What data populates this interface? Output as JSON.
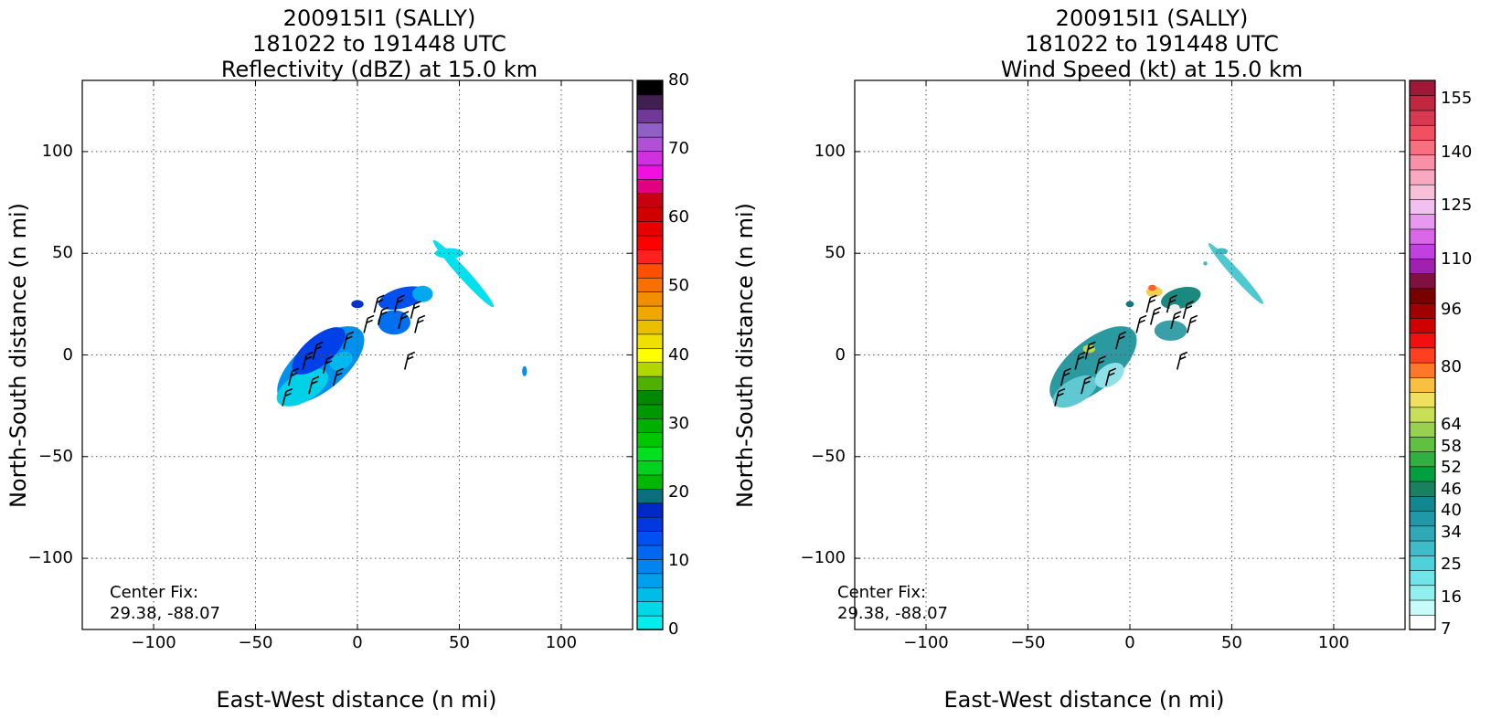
{
  "chart_data": [
    {
      "type": "heatmap",
      "title_lines": [
        "200915I1 (SALLY)",
        "181022 to 191448 UTC",
        "Reflectivity (dBZ) at 15.0 km"
      ],
      "xlabel": "East-West distance (n mi)",
      "ylabel": "North-South distance (n mi)",
      "xlim": [
        -135,
        135
      ],
      "ylim": [
        -135,
        135
      ],
      "xticks": [
        -100,
        -50,
        0,
        50,
        100
      ],
      "yticks": [
        -100,
        -50,
        0,
        50,
        100
      ],
      "x_tick_labels": [
        "−100",
        "−50",
        "0",
        "50",
        "100"
      ],
      "y_tick_labels": [
        "−100",
        "−50",
        "0",
        "50",
        "100"
      ],
      "grid": true,
      "annotation": [
        "Center Fix:",
        "29.38, -88.07"
      ],
      "colorbar": {
        "levels": 32,
        "range": [
          0,
          80
        ],
        "tick_values": [
          0,
          10,
          20,
          30,
          40,
          50,
          60,
          70,
          80
        ],
        "tick_labels": [
          "0",
          "10",
          "20",
          "30",
          "40",
          "50",
          "60",
          "70",
          "80"
        ],
        "colors": [
          "#00eeee",
          "#00d8e8",
          "#00bce8",
          "#00a0ee",
          "#0084ee",
          "#0068f0",
          "#0050f4",
          "#0038e0",
          "#0028c8",
          "#0a7080",
          "#00b800",
          "#00d020",
          "#00e020",
          "#00c800",
          "#00b000",
          "#009800",
          "#008800",
          "#50b000",
          "#b0d800",
          "#ffff00",
          "#f0e000",
          "#e8c000",
          "#f0a800",
          "#f09000",
          "#f87000",
          "#ff5000",
          "#ff2020",
          "#ff0000",
          "#e80000",
          "#d00000",
          "#c80010",
          "#e00080",
          "#f010e0",
          "#d030e0",
          "#b050d8",
          "#9060c8",
          "#703898",
          "#402050",
          "#000000"
        ]
      },
      "series": [
        {
          "name": "",
          "blobs": [
            {
              "x": -18,
              "y": -5,
              "rx": 26,
              "ry": 12,
              "angle": 40,
              "color": "#0090ee"
            },
            {
              "x": -27,
              "y": -16,
              "rx": 14,
              "ry": 7,
              "angle": 30,
              "color": "#00d0e8"
            },
            {
              "x": -19,
              "y": 2,
              "rx": 16,
              "ry": 7,
              "angle": 40,
              "color": "#0040e8"
            },
            {
              "x": -8,
              "y": -3,
              "rx": 6,
              "ry": 4,
              "angle": 30,
              "color": "#00b8ee"
            },
            {
              "x": 18,
              "y": 16,
              "rx": 8,
              "ry": 6,
              "angle": 0,
              "color": "#0070f0"
            },
            {
              "x": 22,
              "y": 28,
              "rx": 12,
              "ry": 5,
              "angle": 15,
              "color": "#0050f0"
            },
            {
              "x": 32,
              "y": 30,
              "rx": 5,
              "ry": 4,
              "angle": 0,
              "color": "#00a8ee"
            },
            {
              "x": 0,
              "y": 25,
              "rx": 3,
              "ry": 2,
              "angle": 0,
              "color": "#0030d0"
            },
            {
              "x": 52,
              "y": 40,
              "rx": 22,
              "ry": 2.5,
              "angle": -48,
              "color": "#00e0ee"
            },
            {
              "x": 45,
              "y": 50,
              "rx": 7,
              "ry": 2.5,
              "angle": 0,
              "color": "#00e0ee"
            },
            {
              "x": 82,
              "y": -8,
              "rx": 1.2,
              "ry": 2.5,
              "angle": 0,
              "color": "#0090ee"
            }
          ]
        }
      ]
    },
    {
      "type": "heatmap",
      "title_lines": [
        "200915I1 (SALLY)",
        "181022 to 191448 UTC",
        "Wind Speed (kt) at 15.0 km"
      ],
      "xlabel": "East-West distance (n mi)",
      "ylabel": "North-South distance (n mi)",
      "xlim": [
        -135,
        135
      ],
      "ylim": [
        -135,
        135
      ],
      "xticks": [
        -100,
        -50,
        0,
        50,
        100
      ],
      "yticks": [
        -100,
        -50,
        0,
        50,
        100
      ],
      "x_tick_labels": [
        "−100",
        "−50",
        "0",
        "50",
        "100"
      ],
      "y_tick_labels": [
        "−100",
        "−50",
        "0",
        "50",
        "100"
      ],
      "grid": true,
      "annotation": [
        "Center Fix:",
        "29.38, -88.07"
      ],
      "colorbar": {
        "levels": 33,
        "range": [
          7,
          160
        ],
        "tick_values": [
          7,
          16,
          25,
          34,
          40,
          46,
          52,
          58,
          64,
          80,
          96,
          110,
          125,
          140,
          155
        ],
        "tick_labels": [
          "7",
          "16",
          "25",
          "34",
          "40",
          "46",
          "52",
          "58",
          "64",
          "80",
          "96",
          "110",
          "125",
          "140",
          "155"
        ],
        "colors": [
          "#ffffff",
          "#c8fafa",
          "#90f0f0",
          "#70e4e8",
          "#50d0d8",
          "#40bcc8",
          "#30a8b8",
          "#2098a8",
          "#108890",
          "#1a8060",
          "#00a040",
          "#30b040",
          "#60c040",
          "#98d050",
          "#c8e058",
          "#f0e060",
          "#f8c040",
          "#ff7828",
          "#ff4020",
          "#f01010",
          "#d00000",
          "#a00000",
          "#780000",
          "#801040",
          "#a020b0",
          "#c040e0",
          "#d868e8",
          "#e898f0",
          "#f0c0f0",
          "#f8c0d8",
          "#f8a8c0",
          "#f890a8",
          "#f87080",
          "#f05060",
          "#d83850",
          "#c02840",
          "#a01838"
        ]
      },
      "series": [
        {
          "name": "",
          "blobs": [
            {
              "x": -18,
              "y": -5,
              "rx": 26,
              "ry": 12,
              "angle": 40,
              "color": "#2a9aa0"
            },
            {
              "x": -27,
              "y": -18,
              "rx": 12,
              "ry": 6,
              "angle": 30,
              "color": "#60c8d0"
            },
            {
              "x": -10,
              "y": -10,
              "rx": 8,
              "ry": 5,
              "angle": 35,
              "color": "#90e0e8"
            },
            {
              "x": -20,
              "y": 3,
              "rx": 3,
              "ry": 2,
              "angle": 0,
              "color": "#c0d840"
            },
            {
              "x": 20,
              "y": 12,
              "rx": 8,
              "ry": 5,
              "angle": 0,
              "color": "#3aa0a8"
            },
            {
              "x": 25,
              "y": 28,
              "rx": 10,
              "ry": 5,
              "angle": 15,
              "color": "#1a8a80"
            },
            {
              "x": 12,
              "y": 31,
              "rx": 4,
              "ry": 2.5,
              "angle": 0,
              "color": "#f0d050"
            },
            {
              "x": 11,
              "y": 33,
              "rx": 2,
              "ry": 1.5,
              "angle": 0,
              "color": "#ff6030"
            },
            {
              "x": 22,
              "y": 23,
              "rx": 2.5,
              "ry": 2,
              "angle": 0,
              "color": "#e8f0f0"
            },
            {
              "x": 0,
              "y": 25,
              "rx": 2,
              "ry": 1.5,
              "angle": 0,
              "color": "#107880"
            },
            {
              "x": 52,
              "y": 40,
              "rx": 20,
              "ry": 2.2,
              "angle": -48,
              "color": "#50c8d0"
            },
            {
              "x": 45,
              "y": 51,
              "rx": 3,
              "ry": 1.5,
              "angle": 0,
              "color": "#40b8c0"
            },
            {
              "x": 37,
              "y": 45,
              "rx": 1,
              "ry": 1,
              "angle": 0,
              "color": "#40b8c0"
            }
          ]
        }
      ]
    }
  ]
}
